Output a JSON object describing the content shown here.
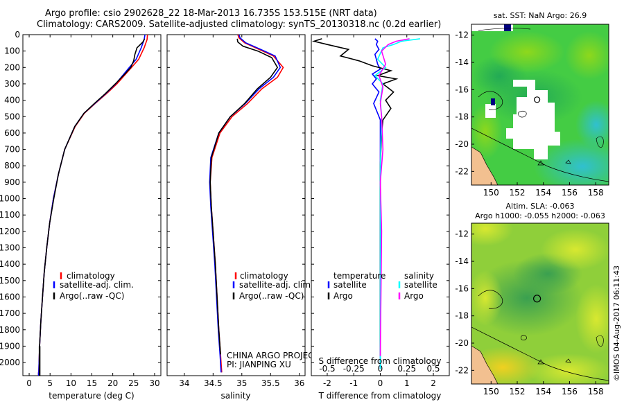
{
  "header": {
    "line1": "Argo profile: csio 2902628_22 18-Mar-2013 16.735S 153.515E (NRT data)",
    "line2": "Climatology: CARS2009. Satellite-adjusted climatology: synTS_20130318.nc (0.2d earlier)"
  },
  "side_stamp": "©IMOS 04-Aug-2017 06:11:43",
  "credit": {
    "line1": "CHINA ARGO PROJECT",
    "line2": "PI: JIANPING XU"
  },
  "colors": {
    "climatology": "#ff0000",
    "satellite": "#0000ff",
    "argo": "#000000",
    "argo_s": "#ff00ff",
    "satellite_s": "#00ffff"
  },
  "chart_data": [
    {
      "type": "line",
      "id": "temperature",
      "xlabel": "temperature (deg C)",
      "ylabel": "",
      "xlim": [
        -1.5,
        31.5
      ],
      "ylim": [
        2080,
        0
      ],
      "xticks": [
        0,
        5,
        10,
        15,
        20,
        25,
        30
      ],
      "yticks": [
        0,
        100,
        200,
        300,
        400,
        500,
        600,
        700,
        800,
        900,
        1000,
        1100,
        1200,
        1300,
        1400,
        1500,
        1600,
        1700,
        1800,
        1900,
        2000
      ],
      "legend": [
        "climatology",
        "satellite-adj. clim.",
        "Argo(..raw -QC)"
      ],
      "series": [
        {
          "name": "climatology",
          "color": "#ff0000",
          "x": [
            28.3,
            28.2,
            27.5,
            26.2,
            23.8,
            21.0,
            18.5,
            15.8,
            13.2,
            11.0,
            8.5,
            7.0,
            5.8,
            4.9,
            4.2,
            3.6,
            3.2,
            2.8,
            2.5,
            2.3
          ],
          "y": [
            0,
            30,
            80,
            150,
            220,
            300,
            360,
            420,
            480,
            560,
            700,
            850,
            1000,
            1150,
            1300,
            1450,
            1600,
            1750,
            1900,
            2060
          ]
        },
        {
          "name": "satellite-adj. clim.",
          "color": "#0000ff",
          "x": [
            27.7,
            27.5,
            26.8,
            25.6,
            23.3,
            20.7,
            18.3,
            15.7,
            13.1,
            10.9,
            8.5,
            7.0,
            5.8,
            4.9,
            4.2,
            3.6,
            3.2,
            2.8,
            2.5,
            2.3
          ],
          "y": [
            0,
            30,
            80,
            150,
            220,
            300,
            360,
            420,
            480,
            560,
            700,
            850,
            1000,
            1150,
            1300,
            1450,
            1600,
            1750,
            1900,
            2060
          ]
        },
        {
          "name": "Argo(..raw -QC)",
          "color": "#000000",
          "x": [
            27.6,
            27.2,
            25.8,
            25.3,
            25.0,
            24.3,
            22.9,
            20.6,
            18.2,
            15.6,
            13.1,
            10.9,
            8.5,
            7.0,
            5.9,
            4.9,
            4.2,
            3.6,
            3.2,
            2.8,
            2.5
          ],
          "y": [
            25,
            45,
            80,
            120,
            160,
            200,
            240,
            300,
            360,
            420,
            480,
            560,
            700,
            850,
            1000,
            1150,
            1300,
            1450,
            1600,
            1750,
            1900
          ]
        }
      ]
    },
    {
      "type": "line",
      "id": "salinity",
      "xlabel": "salinity",
      "ylabel": "",
      "xlim": [
        33.7,
        36.1
      ],
      "ylim": [
        2080,
        0
      ],
      "xticks": [
        34,
        34.5,
        35,
        35.5,
        36
      ],
      "xticklabels": [
        "34",
        "34.5",
        "35",
        "35.5",
        "36"
      ],
      "legend": [
        "climatology",
        "satellite-adj. clim.",
        "Argo(..raw -QC)"
      ],
      "series": [
        {
          "name": "climatology",
          "color": "#ff0000",
          "x": [
            34.93,
            34.95,
            35.05,
            35.3,
            35.55,
            35.72,
            35.62,
            35.35,
            35.1,
            34.83,
            34.62,
            34.48,
            34.45,
            34.47,
            34.5,
            34.54,
            34.57,
            34.6,
            34.63,
            34.65
          ],
          "y": [
            0,
            20,
            50,
            90,
            130,
            200,
            260,
            330,
            420,
            500,
            600,
            750,
            900,
            1050,
            1200,
            1400,
            1600,
            1800,
            1950,
            2060
          ]
        },
        {
          "name": "satellite-adj. clim.",
          "color": "#0000ff",
          "x": [
            34.95,
            34.97,
            35.07,
            35.33,
            35.58,
            35.67,
            35.55,
            35.3,
            35.06,
            34.8,
            34.6,
            34.46,
            34.44,
            34.46,
            34.49,
            34.53,
            34.56,
            34.59,
            34.62,
            34.64
          ],
          "y": [
            0,
            20,
            50,
            90,
            130,
            200,
            260,
            330,
            420,
            500,
            600,
            750,
            900,
            1050,
            1200,
            1400,
            1600,
            1800,
            1950,
            2060
          ]
        },
        {
          "name": "Argo(..raw -QC)",
          "color": "#000000",
          "x": [
            34.92,
            34.93,
            35.02,
            35.28,
            35.52,
            35.62,
            35.5,
            35.27,
            35.05,
            34.8,
            34.6,
            34.47,
            34.45,
            34.47,
            34.5,
            34.54,
            34.57,
            34.6,
            34.63
          ],
          "y": [
            25,
            45,
            70,
            100,
            140,
            200,
            260,
            330,
            420,
            500,
            600,
            750,
            900,
            1050,
            1200,
            1400,
            1600,
            1800,
            1950
          ]
        }
      ]
    },
    {
      "type": "line",
      "id": "differences",
      "xlabel": "T difference from climatology",
      "xlabel_top": "S difference from climatology",
      "xlim": [
        -2.6,
        2.6
      ],
      "ylim": [
        2080,
        0
      ],
      "xticks": [
        -2,
        -1,
        0,
        1,
        2
      ],
      "xticks_top": [
        -0.5,
        -0.25,
        0,
        0.25,
        0.5
      ],
      "xticklabels_top": [
        "-0.5",
        "-0.25",
        "0",
        "0.25",
        "0.5"
      ],
      "legend": [
        "temperature",
        "salinity",
        "satellite",
        "satellite",
        "Argo",
        "Argo"
      ],
      "series": [
        {
          "name": "temperature satellite",
          "color": "#0000ff",
          "x": [
            -0.2,
            -0.1,
            -0.15,
            -0.05,
            -0.2,
            -0.15,
            -0.1,
            0.0,
            -0.3,
            -0.15,
            -0.3,
            -0.05,
            -0.25,
            -0.1,
            0.0,
            0.0,
            0.0,
            0.0,
            0.0
          ],
          "y": [
            25,
            40,
            60,
            90,
            120,
            150,
            180,
            210,
            240,
            270,
            300,
            350,
            420,
            480,
            520,
            700,
            1000,
            1500,
            2040
          ]
        },
        {
          "name": "temperature Argo",
          "color": "#000000",
          "x": [
            -2.2,
            -2.5,
            -2.0,
            -1.2,
            -1.5,
            -0.8,
            -0.3,
            0.4,
            -0.1,
            0.6,
            0.1,
            0.5,
            0.2,
            0.4,
            0.1,
            0.05,
            0.0,
            0.0,
            0.0
          ],
          "y": [
            25,
            40,
            60,
            90,
            130,
            160,
            190,
            220,
            250,
            270,
            300,
            350,
            400,
            450,
            520,
            600,
            800,
            1200,
            1960
          ]
        },
        {
          "name": "salinity satellite",
          "color": "#00ffff",
          "x": [
            1.5,
            0.8,
            0.5,
            0.1,
            -0.1,
            0.2,
            -0.2,
            0.1,
            0.0,
            0.05,
            0.0,
            0.0,
            0.0
          ],
          "y": [
            25,
            40,
            60,
            80,
            150,
            200,
            250,
            300,
            400,
            500,
            800,
            1400,
            2040
          ]
        },
        {
          "name": "salinity Argo",
          "color": "#ff00ff",
          "x": [
            1.1,
            0.6,
            0.3,
            0.05,
            0.2,
            -0.05,
            0.1,
            0.0,
            0.05,
            0.1,
            0.0,
            0.05,
            0.0
          ],
          "y": [
            25,
            40,
            60,
            100,
            180,
            250,
            320,
            420,
            500,
            700,
            900,
            1200,
            1960
          ]
        }
      ]
    },
    {
      "type": "heatmap",
      "id": "sst_map",
      "title": "sat. SST: NaN Argo: 26.9",
      "xlim": [
        148.5,
        159
      ],
      "ylim": [
        -23,
        -11.2
      ],
      "xticks": [
        150,
        152,
        154,
        156,
        158
      ],
      "yticks": [
        -12,
        -14,
        -16,
        -18,
        -20,
        -22
      ],
      "argo_position": [
        153.515,
        -16.735
      ]
    },
    {
      "type": "heatmap",
      "id": "sla_map",
      "title_line1": "Altim. SLA: -0.063",
      "title_line2": "Argo h1000: -0.055 h2000: -0.063",
      "xlim": [
        148.5,
        159
      ],
      "ylim": [
        -23,
        -11.2
      ],
      "xticks": [
        150,
        152,
        154,
        156,
        158
      ],
      "yticks": [
        -12,
        -14,
        -16,
        -18,
        -20,
        -22
      ],
      "argo_position": [
        153.515,
        -16.735
      ]
    }
  ]
}
